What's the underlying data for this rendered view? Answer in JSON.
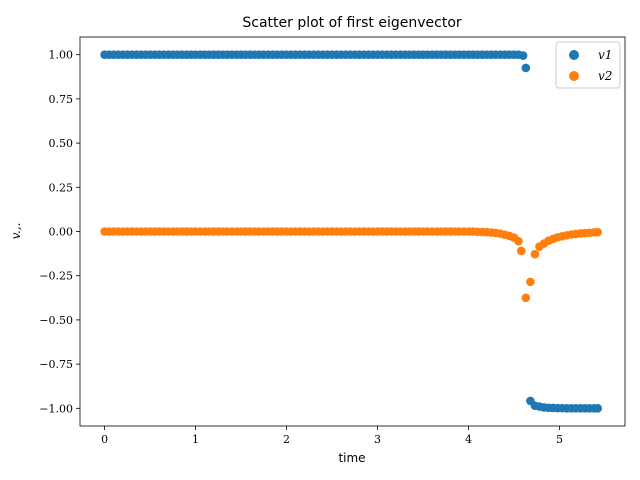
{
  "chart_data": {
    "type": "scatter",
    "title": "Scatter plot of first eigenvector",
    "xlabel": "time",
    "ylabel": "v.,.",
    "xlim": [
      -0.27,
      5.72
    ],
    "ylim": [
      -1.1,
      1.1
    ],
    "xticks": [
      0,
      1,
      2,
      3,
      4,
      5
    ],
    "xtick_labels": [
      "0",
      "1",
      "2",
      "3",
      "4",
      "5"
    ],
    "yticks": [
      -1.0,
      -0.75,
      -0.5,
      -0.25,
      0.0,
      0.25,
      0.5,
      0.75,
      1.0
    ],
    "ytick_labels": [
      "−1.00",
      "−0.75",
      "−0.50",
      "−0.25",
      "0.00",
      "0.25",
      "0.50",
      "0.75",
      "1.00"
    ],
    "grid": false,
    "legend": {
      "position": "top-right"
    },
    "series": [
      {
        "name": "v1",
        "color": "#1f77b4",
        "points": [
          [
            0.0,
            1.0
          ],
          [
            0.05,
            1.0
          ],
          [
            0.1,
            1.0
          ],
          [
            0.15,
            1.0
          ],
          [
            0.2,
            1.0
          ],
          [
            0.25,
            1.0
          ],
          [
            0.3,
            1.0
          ],
          [
            0.35,
            1.0
          ],
          [
            0.4,
            1.0
          ],
          [
            0.45,
            1.0
          ],
          [
            0.5,
            1.0
          ],
          [
            0.55,
            1.0
          ],
          [
            0.6,
            1.0
          ],
          [
            0.65,
            1.0
          ],
          [
            0.7,
            1.0
          ],
          [
            0.75,
            1.0
          ],
          [
            0.8,
            1.0
          ],
          [
            0.85,
            1.0
          ],
          [
            0.9,
            1.0
          ],
          [
            0.95,
            1.0
          ],
          [
            1.0,
            1.0
          ],
          [
            1.05,
            1.0
          ],
          [
            1.1,
            1.0
          ],
          [
            1.15,
            1.0
          ],
          [
            1.2,
            1.0
          ],
          [
            1.25,
            1.0
          ],
          [
            1.3,
            1.0
          ],
          [
            1.35,
            1.0
          ],
          [
            1.4,
            1.0
          ],
          [
            1.45,
            1.0
          ],
          [
            1.5,
            1.0
          ],
          [
            1.55,
            1.0
          ],
          [
            1.6,
            1.0
          ],
          [
            1.65,
            1.0
          ],
          [
            1.7,
            1.0
          ],
          [
            1.75,
            1.0
          ],
          [
            1.8,
            1.0
          ],
          [
            1.85,
            1.0
          ],
          [
            1.9,
            1.0
          ],
          [
            1.95,
            1.0
          ],
          [
            2.0,
            1.0
          ],
          [
            2.05,
            1.0
          ],
          [
            2.1,
            1.0
          ],
          [
            2.15,
            1.0
          ],
          [
            2.2,
            1.0
          ],
          [
            2.25,
            1.0
          ],
          [
            2.3,
            1.0
          ],
          [
            2.35,
            1.0
          ],
          [
            2.4,
            1.0
          ],
          [
            2.45,
            1.0
          ],
          [
            2.5,
            1.0
          ],
          [
            2.55,
            1.0
          ],
          [
            2.6,
            1.0
          ],
          [
            2.65,
            1.0
          ],
          [
            2.7,
            1.0
          ],
          [
            2.75,
            1.0
          ],
          [
            2.8,
            1.0
          ],
          [
            2.85,
            1.0
          ],
          [
            2.9,
            1.0
          ],
          [
            2.95,
            1.0
          ],
          [
            3.0,
            1.0
          ],
          [
            3.05,
            1.0
          ],
          [
            3.1,
            1.0
          ],
          [
            3.15,
            1.0
          ],
          [
            3.2,
            1.0
          ],
          [
            3.25,
            1.0
          ],
          [
            3.3,
            1.0
          ],
          [
            3.35,
            1.0
          ],
          [
            3.4,
            1.0
          ],
          [
            3.45,
            1.0
          ],
          [
            3.5,
            1.0
          ],
          [
            3.55,
            1.0
          ],
          [
            3.6,
            1.0
          ],
          [
            3.65,
            1.0
          ],
          [
            3.7,
            1.0
          ],
          [
            3.75,
            1.0
          ],
          [
            3.8,
            1.0
          ],
          [
            3.85,
            1.0
          ],
          [
            3.9,
            1.0
          ],
          [
            3.95,
            1.0
          ],
          [
            4.0,
            1.0
          ],
          [
            4.05,
            1.0
          ],
          [
            4.1,
            1.0
          ],
          [
            4.15,
            1.0
          ],
          [
            4.2,
            1.0
          ],
          [
            4.25,
            1.0
          ],
          [
            4.3,
            1.0
          ],
          [
            4.35,
            1.0
          ],
          [
            4.4,
            1.0
          ],
          [
            4.45,
            1.0
          ],
          [
            4.5,
            1.0
          ],
          [
            4.55,
            1.0
          ],
          [
            4.6,
            0.995
          ],
          [
            4.63,
            0.925
          ],
          [
            4.68,
            -0.958
          ],
          [
            4.73,
            -0.985
          ],
          [
            4.78,
            -0.99
          ],
          [
            4.83,
            -0.995
          ],
          [
            4.88,
            -0.997
          ],
          [
            4.93,
            -0.998
          ],
          [
            4.98,
            -0.999
          ],
          [
            5.03,
            -0.999
          ],
          [
            5.08,
            -1.0
          ],
          [
            5.13,
            -1.0
          ],
          [
            5.18,
            -1.0
          ],
          [
            5.23,
            -1.0
          ],
          [
            5.28,
            -1.0
          ],
          [
            5.33,
            -1.0
          ],
          [
            5.38,
            -1.0
          ],
          [
            5.42,
            -1.0
          ]
        ]
      },
      {
        "name": "v2",
        "color": "#ff7f0e",
        "points": [
          [
            0.0,
            0.0
          ],
          [
            0.05,
            0.0
          ],
          [
            0.1,
            0.0
          ],
          [
            0.15,
            0.0
          ],
          [
            0.2,
            0.0
          ],
          [
            0.25,
            0.0
          ],
          [
            0.3,
            0.0
          ],
          [
            0.35,
            0.0
          ],
          [
            0.4,
            0.0
          ],
          [
            0.45,
            0.0
          ],
          [
            0.5,
            0.0
          ],
          [
            0.55,
            0.0
          ],
          [
            0.6,
            0.0
          ],
          [
            0.65,
            0.0
          ],
          [
            0.7,
            0.0
          ],
          [
            0.75,
            0.0
          ],
          [
            0.8,
            0.0
          ],
          [
            0.85,
            0.0
          ],
          [
            0.9,
            0.0
          ],
          [
            0.95,
            0.0
          ],
          [
            1.0,
            0.0
          ],
          [
            1.05,
            0.0
          ],
          [
            1.1,
            0.0
          ],
          [
            1.15,
            0.0
          ],
          [
            1.2,
            0.0
          ],
          [
            1.25,
            0.0
          ],
          [
            1.3,
            0.0
          ],
          [
            1.35,
            0.0
          ],
          [
            1.4,
            0.0
          ],
          [
            1.45,
            0.0
          ],
          [
            1.5,
            0.0
          ],
          [
            1.55,
            0.0
          ],
          [
            1.6,
            0.0
          ],
          [
            1.65,
            0.0
          ],
          [
            1.7,
            0.0
          ],
          [
            1.75,
            0.0
          ],
          [
            1.8,
            0.0
          ],
          [
            1.85,
            0.0
          ],
          [
            1.9,
            0.0
          ],
          [
            1.95,
            0.0
          ],
          [
            2.0,
            0.0
          ],
          [
            2.05,
            0.0
          ],
          [
            2.1,
            0.0
          ],
          [
            2.15,
            0.0
          ],
          [
            2.2,
            0.0
          ],
          [
            2.25,
            0.0
          ],
          [
            2.3,
            0.0
          ],
          [
            2.35,
            0.0
          ],
          [
            2.4,
            0.0
          ],
          [
            2.45,
            0.0
          ],
          [
            2.5,
            0.0
          ],
          [
            2.55,
            0.0
          ],
          [
            2.6,
            0.0
          ],
          [
            2.65,
            0.0
          ],
          [
            2.7,
            0.0
          ],
          [
            2.75,
            0.0
          ],
          [
            2.8,
            0.0
          ],
          [
            2.85,
            0.0
          ],
          [
            2.9,
            0.0
          ],
          [
            2.95,
            0.0
          ],
          [
            3.0,
            0.0
          ],
          [
            3.05,
            0.0
          ],
          [
            3.1,
            0.0
          ],
          [
            3.15,
            0.0
          ],
          [
            3.2,
            0.0
          ],
          [
            3.25,
            0.0
          ],
          [
            3.3,
            0.0
          ],
          [
            3.35,
            0.0
          ],
          [
            3.4,
            0.0
          ],
          [
            3.45,
            0.0
          ],
          [
            3.5,
            0.0
          ],
          [
            3.55,
            0.0
          ],
          [
            3.6,
            0.0
          ],
          [
            3.65,
            0.0
          ],
          [
            3.7,
            0.0
          ],
          [
            3.75,
            0.0
          ],
          [
            3.8,
            0.0
          ],
          [
            3.85,
            0.0
          ],
          [
            3.9,
            0.0
          ],
          [
            3.95,
            0.0
          ],
          [
            4.0,
            0.0
          ],
          [
            4.05,
            0.0
          ],
          [
            4.1,
            -0.002
          ],
          [
            4.15,
            -0.003
          ],
          [
            4.2,
            -0.004
          ],
          [
            4.25,
            -0.006
          ],
          [
            4.3,
            -0.008
          ],
          [
            4.35,
            -0.012
          ],
          [
            4.4,
            -0.018
          ],
          [
            4.45,
            -0.025
          ],
          [
            4.5,
            -0.035
          ],
          [
            4.55,
            -0.055
          ],
          [
            4.58,
            -0.11
          ],
          [
            4.63,
            -0.375
          ],
          [
            4.68,
            -0.285
          ],
          [
            4.73,
            -0.128
          ],
          [
            4.78,
            -0.085
          ],
          [
            4.83,
            -0.068
          ],
          [
            4.88,
            -0.052
          ],
          [
            4.93,
            -0.042
          ],
          [
            4.98,
            -0.033
          ],
          [
            5.03,
            -0.027
          ],
          [
            5.08,
            -0.022
          ],
          [
            5.13,
            -0.017
          ],
          [
            5.18,
            -0.014
          ],
          [
            5.23,
            -0.011
          ],
          [
            5.28,
            -0.009
          ],
          [
            5.33,
            -0.007
          ],
          [
            5.38,
            -0.005
          ],
          [
            5.42,
            -0.004
          ]
        ]
      }
    ]
  }
}
